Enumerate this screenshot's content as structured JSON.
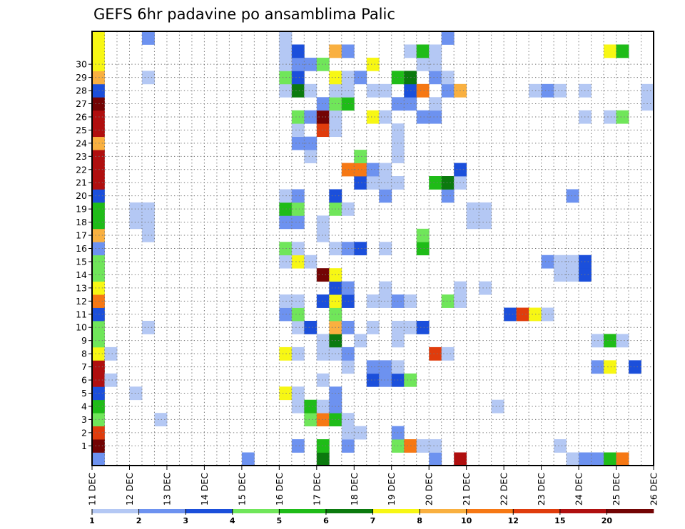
{
  "chart_data": {
    "type": "heatmap",
    "title": "GEFS 6hr padavine po ansamblima Palic",
    "x_labels": [
      "11 DEC",
      "12 DEC",
      "13 DEC",
      "14 DEC",
      "15 DEC",
      "16 DEC",
      "17 DEC",
      "18 DEC",
      "19 DEC",
      "20 DEC",
      "21 DEC",
      "22 DEC",
      "23 DEC",
      "24 DEC",
      "25 DEC",
      "26 DEC"
    ],
    "y_labels": [
      "1",
      "2",
      "3",
      "4",
      "5",
      "6",
      "7",
      "8",
      "9",
      "10",
      "11",
      "12",
      "13",
      "14",
      "15",
      "16",
      "17",
      "18",
      "19",
      "20",
      "21",
      "22",
      "23",
      "24",
      "25",
      "26",
      "27",
      "28",
      "29",
      "30"
    ],
    "grid": true,
    "colorbar": {
      "labels": [
        "1",
        "2",
        "3",
        "4",
        "5",
        "6",
        "7",
        "8",
        "10",
        "12",
        "15",
        "20"
      ],
      "colors": [
        "#b4c8f4",
        "#6d92f0",
        "#1b4fdb",
        "#70e65a",
        "#1fbc18",
        "#0b7a0e",
        "#f7f714",
        "#f9b040",
        "#f67814",
        "#e03c0c",
        "#b00f0f",
        "#730404"
      ]
    },
    "cells": [
      [
        0,
        0,
        "#6d92f0"
      ],
      [
        0,
        12,
        "#6d92f0"
      ],
      [
        0,
        18,
        "#0b7a0e"
      ],
      [
        0,
        27,
        "#6d92f0"
      ],
      [
        0,
        29,
        "#b00f0f"
      ],
      [
        0,
        38,
        "#b4c8f4"
      ],
      [
        0,
        39,
        "#6d92f0"
      ],
      [
        0,
        40,
        "#6d92f0"
      ],
      [
        0,
        41,
        "#1fbc18"
      ],
      [
        0,
        42,
        "#f67814"
      ],
      [
        1,
        0,
        "#730404"
      ],
      [
        1,
        16,
        "#6d92f0"
      ],
      [
        1,
        18,
        "#1fbc18"
      ],
      [
        1,
        20,
        "#6d92f0"
      ],
      [
        1,
        24,
        "#70e65a"
      ],
      [
        1,
        25,
        "#f67814"
      ],
      [
        1,
        26,
        "#b4c8f4"
      ],
      [
        1,
        27,
        "#b4c8f4"
      ],
      [
        1,
        37,
        "#b4c8f4"
      ],
      [
        2,
        0,
        "#e03c0c"
      ],
      [
        2,
        20,
        "#b4c8f4"
      ],
      [
        2,
        21,
        "#b4c8f4"
      ],
      [
        2,
        24,
        "#6d92f0"
      ],
      [
        3,
        0,
        "#70e65a"
      ],
      [
        3,
        5,
        "#b4c8f4"
      ],
      [
        3,
        17,
        "#70e65a"
      ],
      [
        3,
        18,
        "#f67814"
      ],
      [
        3,
        19,
        "#1fbc18"
      ],
      [
        3,
        20,
        "#b4c8f4"
      ],
      [
        4,
        0,
        "#1fbc18"
      ],
      [
        4,
        16,
        "#b4c8f4"
      ],
      [
        4,
        17,
        "#1fbc18"
      ],
      [
        4,
        18,
        "#b4c8f4"
      ],
      [
        4,
        19,
        "#6d92f0"
      ],
      [
        4,
        32,
        "#b4c8f4"
      ],
      [
        5,
        0,
        "#1b4fdb"
      ],
      [
        5,
        3,
        "#b4c8f4"
      ],
      [
        5,
        15,
        "#f7f714"
      ],
      [
        5,
        16,
        "#b4c8f4"
      ],
      [
        5,
        19,
        "#6d92f0"
      ],
      [
        6,
        0,
        "#b00f0f"
      ],
      [
        6,
        1,
        "#b4c8f4"
      ],
      [
        6,
        18,
        "#b4c8f4"
      ],
      [
        6,
        22,
        "#1b4fdb"
      ],
      [
        6,
        23,
        "#6d92f0"
      ],
      [
        6,
        24,
        "#1b4fdb"
      ],
      [
        6,
        25,
        "#70e65a"
      ],
      [
        7,
        0,
        "#b00f0f"
      ],
      [
        7,
        20,
        "#b4c8f4"
      ],
      [
        7,
        22,
        "#6d92f0"
      ],
      [
        7,
        23,
        "#6d92f0"
      ],
      [
        7,
        24,
        "#b4c8f4"
      ],
      [
        7,
        40,
        "#6d92f0"
      ],
      [
        7,
        41,
        "#f7f714"
      ],
      [
        7,
        43,
        "#1b4fdb"
      ],
      [
        8,
        0,
        "#f7f714"
      ],
      [
        8,
        1,
        "#b4c8f4"
      ],
      [
        8,
        15,
        "#f7f714"
      ],
      [
        8,
        16,
        "#b4c8f4"
      ],
      [
        8,
        18,
        "#b4c8f4"
      ],
      [
        8,
        19,
        "#b4c8f4"
      ],
      [
        8,
        20,
        "#6d92f0"
      ],
      [
        8,
        27,
        "#e03c0c"
      ],
      [
        8,
        28,
        "#b4c8f4"
      ],
      [
        9,
        0,
        "#70e65a"
      ],
      [
        9,
        18,
        "#b4c8f4"
      ],
      [
        9,
        19,
        "#0b7a0e"
      ],
      [
        9,
        21,
        "#b4c8f4"
      ],
      [
        9,
        24,
        "#b4c8f4"
      ],
      [
        9,
        40,
        "#b4c8f4"
      ],
      [
        9,
        41,
        "#1fbc18"
      ],
      [
        9,
        42,
        "#b4c8f4"
      ],
      [
        10,
        0,
        "#70e65a"
      ],
      [
        10,
        4,
        "#b4c8f4"
      ],
      [
        10,
        16,
        "#b4c8f4"
      ],
      [
        10,
        17,
        "#1b4fdb"
      ],
      [
        10,
        19,
        "#f9b040"
      ],
      [
        10,
        20,
        "#6d92f0"
      ],
      [
        10,
        22,
        "#b4c8f4"
      ],
      [
        10,
        24,
        "#b4c8f4"
      ],
      [
        10,
        25,
        "#b4c8f4"
      ],
      [
        10,
        26,
        "#1b4fdb"
      ],
      [
        11,
        0,
        "#1b4fdb"
      ],
      [
        11,
        15,
        "#6d92f0"
      ],
      [
        11,
        16,
        "#70e65a"
      ],
      [
        11,
        19,
        "#70e65a"
      ],
      [
        11,
        33,
        "#1b4fdb"
      ],
      [
        11,
        34,
        "#e03c0c"
      ],
      [
        11,
        35,
        "#f7f714"
      ],
      [
        11,
        36,
        "#b4c8f4"
      ],
      [
        12,
        0,
        "#f67814"
      ],
      [
        12,
        15,
        "#b4c8f4"
      ],
      [
        12,
        16,
        "#b4c8f4"
      ],
      [
        12,
        18,
        "#1b4fdb"
      ],
      [
        12,
        19,
        "#f7f714"
      ],
      [
        12,
        20,
        "#1b4fdb"
      ],
      [
        12,
        22,
        "#b4c8f4"
      ],
      [
        12,
        23,
        "#b4c8f4"
      ],
      [
        12,
        24,
        "#6d92f0"
      ],
      [
        12,
        25,
        "#b4c8f4"
      ],
      [
        12,
        28,
        "#70e65a"
      ],
      [
        12,
        29,
        "#b4c8f4"
      ],
      [
        13,
        0,
        "#f7f714"
      ],
      [
        13,
        19,
        "#1b4fdb"
      ],
      [
        13,
        20,
        "#6d92f0"
      ],
      [
        13,
        23,
        "#b4c8f4"
      ],
      [
        13,
        29,
        "#b4c8f4"
      ],
      [
        13,
        31,
        "#b4c8f4"
      ],
      [
        14,
        0,
        "#70e65a"
      ],
      [
        14,
        18,
        "#730404"
      ],
      [
        14,
        19,
        "#f7f714"
      ],
      [
        14,
        37,
        "#b4c8f4"
      ],
      [
        14,
        38,
        "#b4c8f4"
      ],
      [
        14,
        39,
        "#1b4fdb"
      ],
      [
        15,
        0,
        "#70e65a"
      ],
      [
        15,
        15,
        "#b4c8f4"
      ],
      [
        15,
        16,
        "#f7f714"
      ],
      [
        15,
        17,
        "#b4c8f4"
      ],
      [
        15,
        36,
        "#6d92f0"
      ],
      [
        15,
        37,
        "#b4c8f4"
      ],
      [
        15,
        38,
        "#b4c8f4"
      ],
      [
        15,
        39,
        "#1b4fdb"
      ],
      [
        16,
        0,
        "#6d92f0"
      ],
      [
        16,
        15,
        "#70e65a"
      ],
      [
        16,
        16,
        "#b4c8f4"
      ],
      [
        16,
        19,
        "#b4c8f4"
      ],
      [
        16,
        20,
        "#6d92f0"
      ],
      [
        16,
        21,
        "#1b4fdb"
      ],
      [
        16,
        23,
        "#b4c8f4"
      ],
      [
        16,
        26,
        "#1fbc18"
      ],
      [
        17,
        0,
        "#f9b040"
      ],
      [
        17,
        4,
        "#b4c8f4"
      ],
      [
        17,
        18,
        "#b4c8f4"
      ],
      [
        17,
        26,
        "#70e65a"
      ],
      [
        18,
        0,
        "#1fbc18"
      ],
      [
        18,
        3,
        "#b4c8f4"
      ],
      [
        18,
        4,
        "#b4c8f4"
      ],
      [
        18,
        15,
        "#6d92f0"
      ],
      [
        18,
        16,
        "#6d92f0"
      ],
      [
        18,
        18,
        "#b4c8f4"
      ],
      [
        18,
        30,
        "#b4c8f4"
      ],
      [
        18,
        31,
        "#b4c8f4"
      ],
      [
        19,
        0,
        "#1fbc18"
      ],
      [
        19,
        3,
        "#b4c8f4"
      ],
      [
        19,
        4,
        "#b4c8f4"
      ],
      [
        19,
        15,
        "#1fbc18"
      ],
      [
        19,
        16,
        "#70e65a"
      ],
      [
        19,
        19,
        "#70e65a"
      ],
      [
        19,
        20,
        "#b4c8f4"
      ],
      [
        19,
        30,
        "#b4c8f4"
      ],
      [
        19,
        31,
        "#b4c8f4"
      ],
      [
        20,
        0,
        "#1b4fdb"
      ],
      [
        20,
        15,
        "#b4c8f4"
      ],
      [
        20,
        16,
        "#6d92f0"
      ],
      [
        20,
        19,
        "#1b4fdb"
      ],
      [
        20,
        23,
        "#6d92f0"
      ],
      [
        20,
        28,
        "#6d92f0"
      ],
      [
        20,
        38,
        "#6d92f0"
      ],
      [
        21,
        0,
        "#b00f0f"
      ],
      [
        21,
        21,
        "#1b4fdb"
      ],
      [
        21,
        22,
        "#b4c8f4"
      ],
      [
        21,
        23,
        "#b4c8f4"
      ],
      [
        21,
        24,
        "#b4c8f4"
      ],
      [
        21,
        27,
        "#1fbc18"
      ],
      [
        21,
        28,
        "#0b7a0e"
      ],
      [
        21,
        29,
        "#b4c8f4"
      ],
      [
        22,
        0,
        "#b00f0f"
      ],
      [
        22,
        20,
        "#f67814"
      ],
      [
        22,
        21,
        "#f67814"
      ],
      [
        22,
        22,
        "#6d92f0"
      ],
      [
        22,
        23,
        "#b4c8f4"
      ],
      [
        22,
        29,
        "#1b4fdb"
      ],
      [
        23,
        0,
        "#b00f0f"
      ],
      [
        23,
        17,
        "#b4c8f4"
      ],
      [
        23,
        21,
        "#70e65a"
      ],
      [
        23,
        24,
        "#b4c8f4"
      ],
      [
        24,
        0,
        "#f9b040"
      ],
      [
        24,
        16,
        "#6d92f0"
      ],
      [
        24,
        17,
        "#6d92f0"
      ],
      [
        24,
        24,
        "#b4c8f4"
      ],
      [
        25,
        0,
        "#b00f0f"
      ],
      [
        25,
        16,
        "#b4c8f4"
      ],
      [
        25,
        18,
        "#e03c0c"
      ],
      [
        25,
        19,
        "#b4c8f4"
      ],
      [
        25,
        24,
        "#b4c8f4"
      ],
      [
        26,
        0,
        "#b00f0f"
      ],
      [
        26,
        16,
        "#70e65a"
      ],
      [
        26,
        17,
        "#6d92f0"
      ],
      [
        26,
        18,
        "#730404"
      ],
      [
        26,
        19,
        "#b4c8f4"
      ],
      [
        26,
        22,
        "#f7f714"
      ],
      [
        26,
        23,
        "#b4c8f4"
      ],
      [
        26,
        26,
        "#6d92f0"
      ],
      [
        26,
        27,
        "#6d92f0"
      ],
      [
        26,
        39,
        "#b4c8f4"
      ],
      [
        26,
        41,
        "#b4c8f4"
      ],
      [
        26,
        42,
        "#70e65a"
      ],
      [
        27,
        0,
        "#730404"
      ],
      [
        27,
        18,
        "#6d92f0"
      ],
      [
        27,
        19,
        "#70e65a"
      ],
      [
        27,
        20,
        "#1fbc18"
      ],
      [
        27,
        24,
        "#6d92f0"
      ],
      [
        27,
        25,
        "#6d92f0"
      ],
      [
        27,
        27,
        "#b4c8f4"
      ],
      [
        27,
        44,
        "#b4c8f4"
      ],
      [
        28,
        0,
        "#1b4fdb"
      ],
      [
        28,
        15,
        "#b4c8f4"
      ],
      [
        28,
        16,
        "#0b7a0e"
      ],
      [
        28,
        17,
        "#b4c8f4"
      ],
      [
        28,
        19,
        "#b4c8f4"
      ],
      [
        28,
        20,
        "#b4c8f4"
      ],
      [
        28,
        22,
        "#b4c8f4"
      ],
      [
        28,
        23,
        "#b4c8f4"
      ],
      [
        28,
        25,
        "#1b4fdb"
      ],
      [
        28,
        26,
        "#f67814"
      ],
      [
        28,
        28,
        "#6d92f0"
      ],
      [
        28,
        29,
        "#f9b040"
      ],
      [
        28,
        35,
        "#b4c8f4"
      ],
      [
        28,
        36,
        "#6d92f0"
      ],
      [
        28,
        37,
        "#b4c8f4"
      ],
      [
        28,
        39,
        "#b4c8f4"
      ],
      [
        28,
        44,
        "#b4c8f4"
      ],
      [
        29,
        0,
        "#f9b040"
      ],
      [
        29,
        4,
        "#b4c8f4"
      ],
      [
        29,
        15,
        "#70e65a"
      ],
      [
        29,
        16,
        "#1b4fdb"
      ],
      [
        29,
        19,
        "#f7f714"
      ],
      [
        29,
        20,
        "#b4c8f4"
      ],
      [
        29,
        21,
        "#6d92f0"
      ],
      [
        29,
        24,
        "#1fbc18"
      ],
      [
        29,
        25,
        "#0b7a0e"
      ],
      [
        29,
        27,
        "#6d92f0"
      ],
      [
        29,
        28,
        "#b4c8f4"
      ],
      [
        30,
        0,
        "#f7f714"
      ],
      [
        30,
        15,
        "#b4c8f4"
      ],
      [
        30,
        16,
        "#6d92f0"
      ],
      [
        30,
        17,
        "#6d92f0"
      ],
      [
        30,
        18,
        "#70e65a"
      ],
      [
        30,
        22,
        "#f7f714"
      ],
      [
        30,
        26,
        "#b4c8f4"
      ],
      [
        30,
        27,
        "#b4c8f4"
      ],
      [
        31,
        0,
        "#f7f714"
      ],
      [
        31,
        15,
        "#b4c8f4"
      ],
      [
        31,
        16,
        "#1b4fdb"
      ],
      [
        31,
        19,
        "#f9b040"
      ],
      [
        31,
        20,
        "#6d92f0"
      ],
      [
        31,
        25,
        "#b4c8f4"
      ],
      [
        31,
        26,
        "#1fbc18"
      ],
      [
        31,
        27,
        "#b4c8f4"
      ],
      [
        31,
        41,
        "#f7f714"
      ],
      [
        31,
        42,
        "#1fbc18"
      ],
      [
        32,
        0,
        "#f7f714"
      ],
      [
        32,
        4,
        "#6d92f0"
      ],
      [
        32,
        15,
        "#b4c8f4"
      ],
      [
        32,
        28,
        "#6d92f0"
      ]
    ]
  }
}
